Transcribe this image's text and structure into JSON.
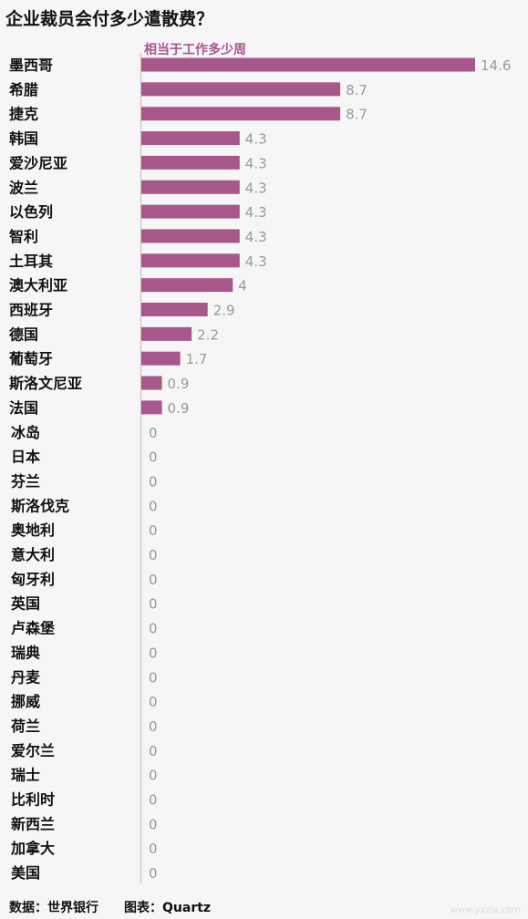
{
  "footer": {
    "source": "数据：世界银行",
    "chart_by": "图表：Quartz"
  },
  "watermark": "www.yxzix.com",
  "colors": {
    "bar": "#a7578a",
    "value_label": "#9a9a9a",
    "axis": "#bdbdbd",
    "background": "#f6f6f6"
  },
  "chart_data": {
    "type": "bar",
    "orientation": "horizontal",
    "title": "企业裁员会付多少遣散费？",
    "subtitle": "相当于工作多少周",
    "categories": [
      "墨西哥",
      "希腊",
      "捷克",
      "韩国",
      "爱沙尼亚",
      "波兰",
      "以色列",
      "智利",
      "土耳其",
      "澳大利亚",
      "西班牙",
      "德国",
      "葡萄牙",
      "斯洛文尼亚",
      "法国",
      "冰岛",
      "日本",
      "芬兰",
      "斯洛伐克",
      "奥地利",
      "意大利",
      "匈牙利",
      "英国",
      "卢森堡",
      "瑞典",
      "丹麦",
      "挪威",
      "荷兰",
      "爱尔兰",
      "瑞士",
      "比利时",
      "新西兰",
      "加拿大",
      "美国"
    ],
    "values": [
      14.6,
      8.7,
      8.7,
      4.3,
      4.3,
      4.3,
      4.3,
      4.3,
      4.3,
      4,
      2.9,
      2.2,
      1.7,
      0.9,
      0.9,
      0,
      0,
      0,
      0,
      0,
      0,
      0,
      0,
      0,
      0,
      0,
      0,
      0,
      0,
      0,
      0,
      0,
      0,
      0
    ],
    "value_labels": [
      "14.6",
      "8.7",
      "8.7",
      "4.3",
      "4.3",
      "4.3",
      "4.3",
      "4.3",
      "4.3",
      "4",
      "2.9",
      "2.2",
      "1.7",
      "0.9",
      "0.9",
      "0",
      "0",
      "0",
      "0",
      "0",
      "0",
      "0",
      "0",
      "0",
      "0",
      "0",
      "0",
      "0",
      "0",
      "0",
      "0",
      "0",
      "0",
      "0"
    ],
    "xlim": [
      0,
      14.6
    ],
    "grid": false,
    "legend": "none"
  }
}
